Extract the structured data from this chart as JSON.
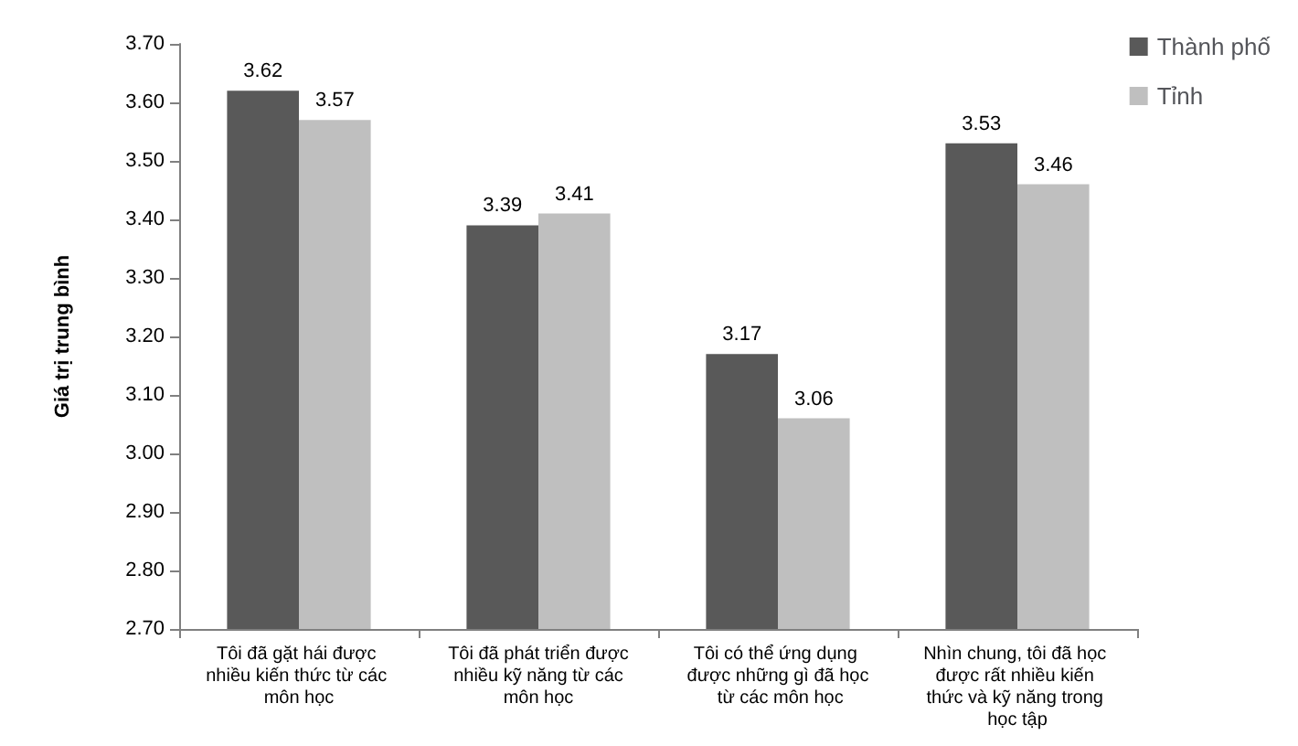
{
  "chart_data": {
    "type": "bar",
    "ylabel": "Giá trị trung bình",
    "categories": [
      "Tôi đã gặt hái được nhiều kiến thức từ các môn học",
      "Tôi đã phát triển được nhiều kỹ năng từ các môn học",
      "Tôi có thể ứng dụng được những gì đã học từ các môn học",
      "Nhìn chung, tôi đã học được rất nhiều kiến thức và kỹ năng trong học tập"
    ],
    "series": [
      {
        "name": "Thành phố",
        "color": "#595959",
        "values": [
          3.62,
          3.39,
          3.17,
          3.53
        ]
      },
      {
        "name": "Tỉnh",
        "color": "#bfbfbf",
        "values": [
          3.57,
          3.41,
          3.06,
          3.46
        ]
      }
    ],
    "ylim": [
      2.7,
      3.7
    ],
    "yticks": [
      {
        "value": 2.7,
        "label": "2.70"
      },
      {
        "value": 2.8,
        "label": "2.80"
      },
      {
        "value": 2.9,
        "label": "2.90"
      },
      {
        "value": 3.0,
        "label": "3.00"
      },
      {
        "value": 3.1,
        "label": "3.10"
      },
      {
        "value": 3.2,
        "label": "3.20"
      },
      {
        "value": 3.3,
        "label": "3.30"
      },
      {
        "value": 3.4,
        "label": "3.40"
      },
      {
        "value": 3.5,
        "label": "3.50"
      },
      {
        "value": 3.6,
        "label": "3.60"
      },
      {
        "value": 3.7,
        "label": "3.70"
      }
    ],
    "data_labels": true,
    "legend": "top right",
    "grid": false
  }
}
